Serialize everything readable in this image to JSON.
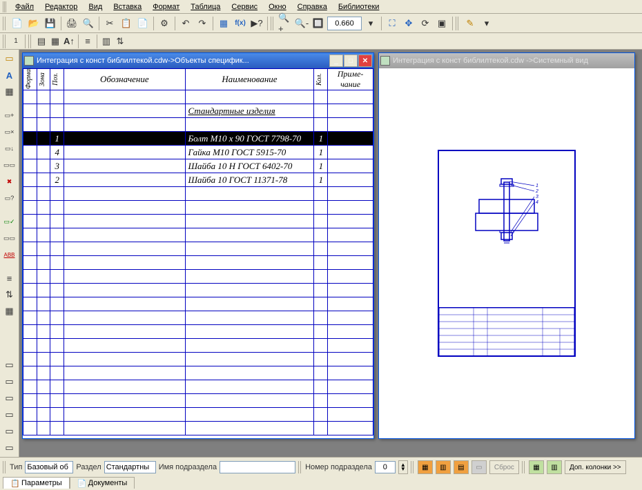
{
  "menu": {
    "items": [
      "Файл",
      "Редактор",
      "Вид",
      "Вставка",
      "Формат",
      "Таблица",
      "Сервис",
      "Окно",
      "Справка",
      "Библиотеки"
    ]
  },
  "toolbar1": {
    "zoom_value": "0.660"
  },
  "windows": {
    "spec": {
      "title": "Интеграция с конст библилтекой.cdw->Объекты специфик...",
      "headers": {
        "format": "Формат",
        "zone": "Зона",
        "pos": "Поз.",
        "designation": "Обозначение",
        "name": "Наименование",
        "qty": "Кол.",
        "note": "Приме-\nчание"
      },
      "section_row": "Стандартные изделия",
      "rows": [
        {
          "pos": "1",
          "name": "Болт М10 x 90 ГОСТ 7798-70",
          "qty": "1",
          "selected": true
        },
        {
          "pos": "4",
          "name": "Гайка М10 ГОСТ 5915-70",
          "qty": "1"
        },
        {
          "pos": "3",
          "name": "Шайба 10 Н ГОСТ 6402-70",
          "qty": "1"
        },
        {
          "pos": "2",
          "name": "Шайба 10 ГОСТ 11371-78",
          "qty": "1"
        }
      ]
    },
    "drawing": {
      "title": "Интеграция с конст библилтекой.cdw ->Системный вид"
    }
  },
  "bottom": {
    "type_label": "Тип",
    "type_value": "Базовый об",
    "section_label": "Раздел",
    "section_value": "Стандартны",
    "subname_label": "Имя подраздела",
    "subname_value": "",
    "subnum_label": "Номер подраздела",
    "subnum_value": "0",
    "reset_label": "Сброс",
    "extra_cols": "Доп. колонки  >>",
    "tabs": {
      "params": "Параметры",
      "docs": "Документы"
    }
  },
  "colors": {
    "frame": "#0000c0",
    "select_bg": "#000000"
  }
}
